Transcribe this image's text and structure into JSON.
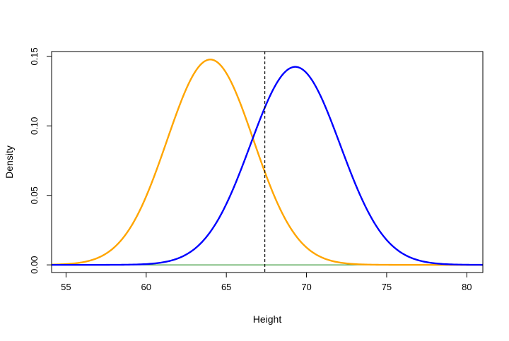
{
  "chart_data": {
    "type": "line",
    "title": "",
    "xlabel": "Height",
    "ylabel": "Density",
    "xlim": [
      54.1,
      81
    ],
    "ylim": [
      -0.0055,
      0.1535
    ],
    "xticks": [
      55,
      60,
      65,
      70,
      75,
      80
    ],
    "yticks": [
      0.0,
      0.05,
      0.1,
      0.15
    ],
    "xtick_labels": [
      "55",
      "60",
      "65",
      "70",
      "75",
      "80"
    ],
    "ytick_labels": [
      "0.00",
      "0.05",
      "0.10",
      "0.15"
    ],
    "grid": false,
    "legend": "none",
    "series": [
      {
        "color": "#ffa500",
        "distribution": "normal",
        "mean": 64.0,
        "sd": 2.7,
        "x": [
          54,
          56,
          58,
          60,
          61,
          62,
          63,
          64,
          65,
          66,
          67,
          68,
          70,
          72,
          74,
          76,
          78,
          81
        ],
        "values": [
          0.0,
          0.0018,
          0.0126,
          0.0493,
          0.0797,
          0.1117,
          0.1383,
          0.1478,
          0.1383,
          0.1117,
          0.0797,
          0.0493,
          0.0126,
          0.0018,
          0.0001,
          0.0,
          0.0,
          0.0
        ]
      },
      {
        "color": "#0000ff",
        "distribution": "normal",
        "mean": 69.3,
        "sd": 2.8,
        "x": [
          54,
          60,
          62,
          64,
          66,
          67,
          68,
          69.3,
          70,
          71,
          72,
          74,
          76,
          78,
          81
        ],
        "values": [
          0.0,
          0.0006,
          0.0047,
          0.0237,
          0.071,
          0.1018,
          0.1276,
          0.1425,
          0.1385,
          0.1227,
          0.0888,
          0.0352,
          0.0081,
          0.0011,
          0.0
        ]
      }
    ],
    "hlines": [
      {
        "y": 0.0,
        "color": "#228b22"
      }
    ],
    "vlines": [
      {
        "x": 67.4,
        "style": "dashed",
        "color": "#000000"
      }
    ]
  }
}
